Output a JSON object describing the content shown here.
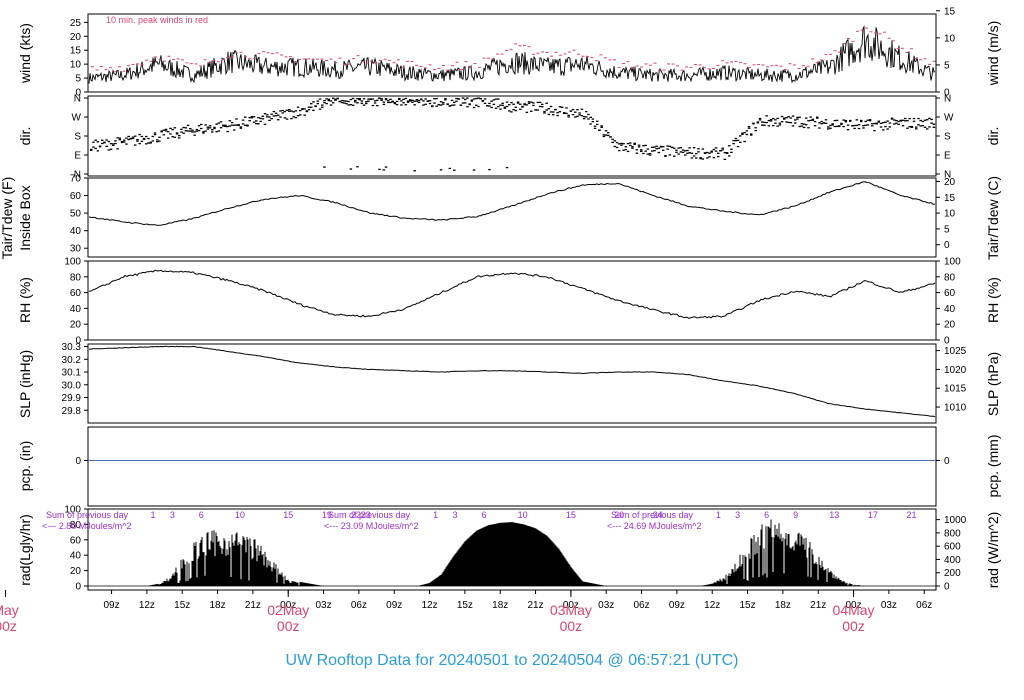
{
  "title": "UW Rooftop Data for 20240501  to  20240504 @ 06:57:21  (UTC)",
  "colors": {
    "peak": "#d9466b",
    "title": "#2a9fd6",
    "day": "#d9466b",
    "precip": "#4a6fb5",
    "radNote": "#9b2fd0"
  },
  "panels": {
    "wind": {
      "left_label": "wind (kts)",
      "right_label": "wind (m/s)",
      "note": "10 min. peak winds in red",
      "left_ticks": [
        "0",
        "5",
        "10",
        "15",
        "20",
        "25"
      ],
      "right_ticks": [
        "0",
        "5",
        "10",
        "15"
      ]
    },
    "dir": {
      "left_label": "dir.",
      "right_label": "dir.",
      "ticks": [
        "N",
        "E",
        "S",
        "W",
        "N"
      ]
    },
    "temp": {
      "left_label1": "Tair/Tdew (F)",
      "left_label2": "Inside Box",
      "right_label": "Tair/Tdew (C)",
      "left_ticks": [
        "30",
        "40",
        "50",
        "60",
        "70"
      ],
      "right_ticks": [
        "0",
        "5",
        "10",
        "15",
        "20"
      ]
    },
    "rh": {
      "left_label": "RH (%)",
      "right_label": "RH (%)",
      "ticks": [
        "0",
        "20",
        "40",
        "60",
        "80",
        "100"
      ]
    },
    "slp": {
      "left_label": "SLP (inHg)",
      "right_label": "SLP (hPa)",
      "left_ticks": [
        "29.8",
        "29.9",
        "30.0",
        "30.1",
        "30.2",
        "30.3"
      ],
      "right_ticks": [
        "1010",
        "1015",
        "1020",
        "1025"
      ]
    },
    "pcp": {
      "left_label": "pcp. (in)",
      "right_label": "pcp. (mm)",
      "left_ticks": [
        "0"
      ],
      "right_ticks": [
        "0"
      ]
    },
    "rad": {
      "left_label": "rad(Lgly/hr)",
      "right_label": "rad (W/m^2)",
      "left_ticks": [
        "0",
        "20",
        "40",
        "60",
        "80",
        "100"
      ],
      "right_ticks": [
        "0",
        "200",
        "400",
        "600",
        "800",
        "1000"
      ],
      "notes": [
        {
          "line1": "Sum of previous day",
          "line2": "<--- 2.80 MJoules/m^2"
        },
        {
          "line1": "Sum of previous day",
          "line2": "<--- 23.09 MJoules/m^2"
        },
        {
          "line1": "Sum of previous day",
          "line2": "<--- 24.69 MJoules/m^2"
        }
      ],
      "hour_labels": [
        [
          "1",
          "3",
          "6",
          "10",
          "15",
          "19",
          "22",
          "23"
        ],
        [
          "1",
          "3",
          "6",
          "10",
          "15",
          "20",
          "24"
        ],
        [
          "1",
          "3",
          "6",
          "9",
          "13",
          "17",
          "21"
        ]
      ]
    }
  },
  "xaxis": {
    "hour_ticks": [
      "09z",
      "12z",
      "15z",
      "18z",
      "21z",
      "00z",
      "03z",
      "06z",
      "09z",
      "12z",
      "15z",
      "18z",
      "21z",
      "00z",
      "03z",
      "06z",
      "09z",
      "12z",
      "15z",
      "18z",
      "21z",
      "00z",
      "03z",
      "06z"
    ],
    "days": [
      {
        "name": "May",
        "hour": "00z"
      },
      {
        "name": "02May",
        "hour": "00z"
      },
      {
        "name": "03May",
        "hour": "00z"
      },
      {
        "name": "04May",
        "hour": "00z"
      }
    ]
  },
  "chart_data": [
    {
      "type": "line",
      "name": "wind",
      "ylim": [
        0,
        28
      ],
      "x_hours": [
        7,
        79
      ],
      "x": [
        7,
        10,
        13,
        16,
        19,
        22,
        25,
        28,
        31,
        34,
        37,
        40,
        43,
        46,
        49,
        52,
        55,
        58,
        61,
        64,
        67,
        70,
        73,
        76,
        79
      ],
      "series": [
        {
          "name": "",
          "values": [
            5,
            6,
            10,
            6,
            11,
            9,
            9,
            8,
            9,
            7,
            6,
            7,
            11,
            9,
            10,
            7,
            6,
            6,
            7,
            6,
            6,
            9,
            19,
            12,
            6
          ]
        },
        {
          "name": "10 min. peak winds in red",
          "values": [
            8,
            9,
            13,
            9,
            14,
            13,
            12,
            11,
            12,
            10,
            9,
            10,
            16,
            14,
            14,
            10,
            9,
            9,
            10,
            9,
            9,
            13,
            24,
            16,
            9
          ]
        }
      ]
    },
    {
      "type": "scatter",
      "name": "dir.",
      "ylim": [
        0,
        360
      ],
      "x_hours": [
        7,
        79
      ],
      "x": [
        7,
        10,
        13,
        16,
        19,
        22,
        25,
        28,
        31,
        34,
        37,
        40,
        43,
        46,
        49,
        52,
        55,
        58,
        61,
        64,
        67,
        70,
        73,
        76,
        79
      ],
      "values": [
        130,
        150,
        180,
        210,
        230,
        260,
        300,
        355,
        350,
        350,
        345,
        340,
        320,
        310,
        280,
        130,
        110,
        100,
        95,
        250,
        250,
        240,
        230,
        240,
        240
      ]
    },
    {
      "type": "line",
      "name": "Tair/Tdew (F)",
      "ylim": [
        25,
        70
      ],
      "x_hours": [
        7,
        79
      ],
      "x": [
        7,
        10,
        13,
        16,
        19,
        22,
        25,
        28,
        31,
        34,
        37,
        40,
        43,
        46,
        49,
        52,
        55,
        58,
        61,
        64,
        67,
        70,
        73,
        76,
        79
      ],
      "values": [
        48,
        45,
        43,
        47,
        53,
        58,
        60,
        56,
        50,
        47,
        46,
        48,
        54,
        61,
        66,
        67,
        60,
        54,
        51,
        49,
        54,
        62,
        68,
        60,
        55
      ]
    },
    {
      "type": "line",
      "name": "RH (%)",
      "ylim": [
        0,
        100
      ],
      "x_hours": [
        7,
        79
      ],
      "x": [
        7,
        10,
        13,
        16,
        19,
        22,
        25,
        28,
        31,
        34,
        37,
        40,
        43,
        46,
        49,
        52,
        55,
        58,
        61,
        64,
        67,
        70,
        73,
        76,
        79
      ],
      "values": [
        60,
        80,
        88,
        85,
        75,
        62,
        45,
        32,
        30,
        40,
        60,
        80,
        85,
        80,
        65,
        50,
        38,
        28,
        30,
        50,
        62,
        55,
        75,
        60,
        72
      ]
    },
    {
      "type": "line",
      "name": "SLP (inHg)",
      "ylim": [
        29.7,
        30.32
      ],
      "x_hours": [
        7,
        79
      ],
      "x": [
        7,
        10,
        13,
        16,
        19,
        22,
        25,
        28,
        31,
        34,
        37,
        40,
        43,
        46,
        49,
        52,
        55,
        58,
        61,
        64,
        67,
        70,
        73,
        76,
        79
      ],
      "values": [
        30.28,
        30.29,
        30.3,
        30.3,
        30.26,
        30.22,
        30.17,
        30.14,
        30.12,
        30.11,
        30.1,
        30.11,
        30.11,
        30.1,
        30.09,
        30.1,
        30.1,
        30.08,
        30.03,
        29.99,
        29.93,
        29.85,
        29.81,
        29.78,
        29.75
      ]
    },
    {
      "type": "line",
      "name": "pcp. (in)",
      "ylim": [
        -1,
        1
      ],
      "x_hours": [
        7,
        79
      ],
      "x": [
        7,
        79
      ],
      "values": [
        0,
        0
      ]
    },
    {
      "type": "area",
      "name": "rad(Lgly/hr)",
      "ylim": [
        0,
        100
      ],
      "x_hours": [
        7,
        79
      ],
      "x": [
        12,
        13,
        14,
        15,
        16,
        17,
        18,
        19,
        20,
        21,
        22,
        24,
        27,
        30,
        33,
        35,
        36,
        37,
        38,
        39,
        40,
        41,
        42,
        43,
        44,
        45,
        46,
        47,
        48,
        49,
        51,
        56,
        59,
        60,
        61,
        62,
        63,
        64,
        65,
        66,
        67,
        68,
        69,
        70,
        71,
        72,
        73,
        75
      ],
      "values": [
        0,
        3,
        12,
        40,
        55,
        68,
        70,
        69,
        68,
        62,
        45,
        8,
        0,
        0,
        0,
        0,
        4,
        15,
        38,
        58,
        72,
        79,
        82,
        83,
        80,
        75,
        65,
        48,
        25,
        6,
        0,
        0,
        0,
        3,
        12,
        30,
        55,
        75,
        90,
        85,
        78,
        62,
        45,
        22,
        8,
        2,
        0,
        0
      ]
    }
  ]
}
